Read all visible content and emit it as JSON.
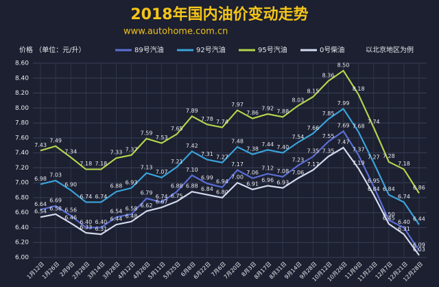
{
  "chart_data": {
    "type": "line",
    "title": "2018年国内油价变动走势",
    "subtitle": "www.autohome.com.cn",
    "y_label": "价格 （单位：元/升）",
    "note": "以北京地区为例",
    "categories": [
      "1月12日",
      "1月26日",
      "2月9日",
      "2月28日",
      "3月14日",
      "3月28日",
      "4月12日",
      "4月26日",
      "5月11日",
      "5月25日",
      "6月8日",
      "6月22日",
      "7月6日",
      "7月20日",
      "8月3日",
      "8月17日",
      "8月31日",
      "9月14日",
      "9月28日",
      "10月12日",
      "10月26日",
      "11月9日",
      "11月23日",
      "12月7日",
      "12月21日",
      "12月28日"
    ],
    "series": [
      {
        "name": "89号汽油",
        "color": "#5b6fd8",
        "values": [
          6.64,
          6.69,
          6.56,
          6.4,
          6.4,
          6.54,
          6.58,
          6.79,
          6.74,
          6.88,
          7.1,
          6.99,
          6.94,
          7.17,
          7.06,
          7.12,
          7.08,
          7.23,
          7.35,
          7.55,
          7.69,
          7.37,
          6.95,
          6.5,
          6.4,
          6.09
        ],
        "value_labels": [
          "6.64",
          "6.69",
          "6.56",
          "6.40",
          "6.40",
          "6.54",
          "6.58",
          "6.79",
          "6.74",
          "6.88",
          "7.10",
          "6.99",
          "6.94",
          "7.17",
          "7.06",
          "7.12",
          "7.08",
          "7.23",
          "7.35",
          "7.55",
          "7.69",
          "7.37",
          "6.95",
          "6.50",
          "6.40",
          "6.09"
        ]
      },
      {
        "name": "92号汽油",
        "color": "#3aa3dc",
        "values": [
          6.98,
          7.03,
          6.9,
          6.74,
          6.74,
          6.88,
          6.93,
          7.13,
          7.07,
          7.21,
          7.42,
          7.31,
          7.27,
          7.48,
          7.38,
          7.44,
          7.4,
          7.54,
          7.66,
          7.85,
          7.99,
          7.68,
          7.27,
          6.84,
          6.74,
          6.44
        ],
        "value_labels": [
          "6.98",
          "7.03",
          "6.90",
          "6.74",
          "6.74",
          "6.88",
          "6.93",
          "7.13",
          "7.07",
          "7.21",
          "7.42",
          "7.31",
          "7.27",
          "7.48",
          "7.38",
          "7.44",
          "7.40",
          "7.54",
          "7.66",
          "7.85",
          "7.99",
          "7.68",
          "7.27",
          "6.84",
          "6.74",
          "6.44"
        ]
      },
      {
        "name": "95号汽油",
        "color": "#b5d44c",
        "values": [
          7.43,
          7.49,
          7.34,
          7.18,
          7.18,
          7.33,
          7.37,
          7.59,
          7.53,
          7.65,
          7.89,
          7.78,
          7.74,
          7.97,
          7.86,
          7.92,
          7.88,
          8.03,
          8.15,
          8.36,
          8.5,
          8.18,
          7.74,
          7.28,
          7.18,
          6.86
        ],
        "value_labels": [
          "7.43",
          "7.49",
          "7.34",
          "7.18",
          "7.18",
          "7.33",
          "7.37",
          "7.59",
          "7.53",
          "7.65",
          "7.89",
          "7.78",
          "7.74",
          "7.97",
          "7.86",
          "7.92",
          "7.88",
          "8.03",
          "8.15",
          "8.36",
          "8.50",
          "8.18",
          "7.74",
          "7.28",
          "7.18",
          "6.86"
        ]
      },
      {
        "name": "0号柴油",
        "color": "#d4dbef",
        "values": [
          6.54,
          6.58,
          6.46,
          6.33,
          6.31,
          6.44,
          6.48,
          6.62,
          6.67,
          6.75,
          6.88,
          6.84,
          6.8,
          7.0,
          6.91,
          6.96,
          6.93,
          7.06,
          7.17,
          7.35,
          7.47,
          7.19,
          6.84,
          6.45,
          6.31,
          6.03
        ],
        "value_labels": [
          "6.54",
          "6.58",
          "6.46",
          "6.33",
          "6.31",
          "6.44",
          "6.48",
          "6.62",
          "6.67",
          "6.75",
          "6.88",
          "6.84",
          "6.80",
          "7.00",
          "6.91",
          "6.96",
          "6.93",
          "7.06",
          "7.17",
          "7.35",
          "7.47",
          "7.19",
          "6.84",
          "6.45",
          "6.31",
          "6.03"
        ]
      }
    ],
    "ylim": [
      6.0,
      8.6
    ],
    "yticks": [
      {
        "value": 6.0,
        "label": "6.00"
      },
      {
        "value": 6.2,
        "label": "6.20"
      },
      {
        "value": 6.4,
        "label": "6.40"
      },
      {
        "value": 6.6,
        "label": "6.60"
      },
      {
        "value": 6.8,
        "label": "6.80"
      },
      {
        "value": 7.0,
        "label": "7.00"
      },
      {
        "value": 7.2,
        "label": "7.20"
      },
      {
        "value": 7.4,
        "label": "7.40"
      },
      {
        "value": 7.6,
        "label": "7.60"
      },
      {
        "value": 7.8,
        "label": "7.80"
      },
      {
        "value": 8.0,
        "label": "8.00"
      },
      {
        "value": 8.2,
        "label": "8.20"
      },
      {
        "value": 8.4,
        "label": "8.40"
      },
      {
        "value": 8.6,
        "label": "8.60"
      }
    ],
    "grid": true
  }
}
